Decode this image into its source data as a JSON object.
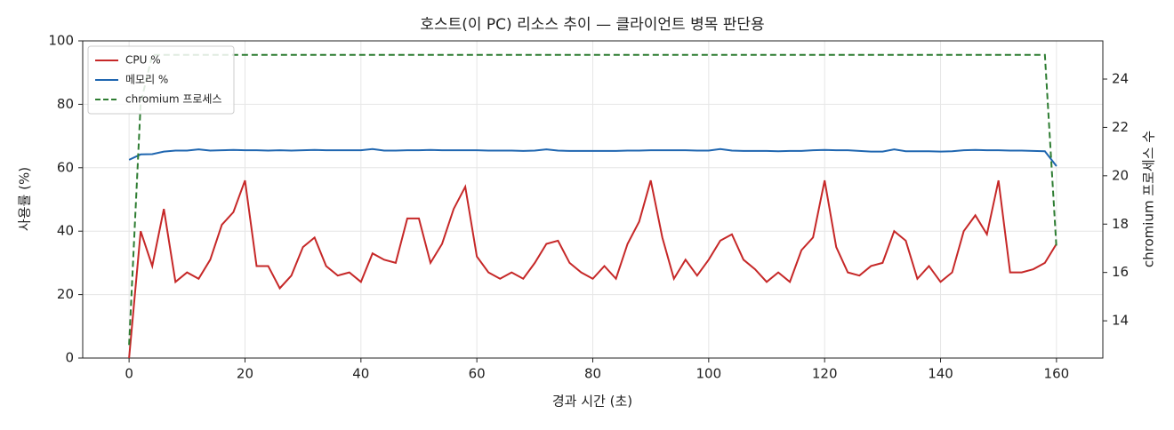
{
  "chart_data": {
    "type": "line",
    "title": "호스트(이 PC) 리소스 추이 — 클라이언트 병목 판단용",
    "xlabel": "경과 시간 (초)",
    "ylabel": "사용률 (%)",
    "y2label": "chromium 프로세스 수",
    "x": [
      0,
      2,
      4,
      6,
      8,
      10,
      12,
      14,
      16,
      18,
      20,
      22,
      24,
      26,
      28,
      30,
      32,
      34,
      36,
      38,
      40,
      42,
      44,
      46,
      48,
      50,
      52,
      54,
      56,
      58,
      60,
      62,
      64,
      66,
      68,
      70,
      72,
      74,
      76,
      78,
      80,
      82,
      84,
      86,
      88,
      90,
      92,
      94,
      96,
      98,
      100,
      102,
      104,
      106,
      108,
      110,
      112,
      114,
      116,
      118,
      120,
      122,
      124,
      126,
      128,
      130,
      132,
      134,
      136,
      138,
      140,
      142,
      144,
      146,
      148,
      150,
      152,
      154,
      156,
      158,
      160
    ],
    "series": [
      {
        "name": "CPU %",
        "color": "#c62828",
        "linestyle": "solid",
        "axis": "y",
        "values": [
          0,
          40,
          29,
          47,
          24,
          27,
          25,
          31,
          42,
          46,
          56,
          29,
          29,
          22,
          26,
          35,
          38,
          29,
          26,
          27,
          24,
          33,
          31,
          30,
          44,
          44,
          30,
          36,
          47,
          54,
          32,
          27,
          25,
          27,
          25,
          30,
          36,
          37,
          30,
          27,
          25,
          29,
          25,
          36,
          43,
          56,
          38,
          25,
          31,
          26,
          31,
          37,
          39,
          31,
          28,
          24,
          27,
          24,
          34,
          38,
          56,
          35,
          27,
          26,
          29,
          30,
          40,
          37,
          25,
          29,
          24,
          27,
          40,
          45,
          39,
          56,
          27,
          27,
          28,
          30,
          36
        ]
      },
      {
        "name": "메모리 %",
        "color": "#1f66b0",
        "linestyle": "solid",
        "axis": "y",
        "values": [
          62.5,
          64.2,
          64.3,
          65.1,
          65.4,
          65.4,
          65.8,
          65.4,
          65.5,
          65.6,
          65.5,
          65.5,
          65.4,
          65.5,
          65.4,
          65.5,
          65.6,
          65.5,
          65.5,
          65.5,
          65.5,
          65.9,
          65.4,
          65.4,
          65.5,
          65.5,
          65.6,
          65.5,
          65.5,
          65.5,
          65.5,
          65.4,
          65.4,
          65.4,
          65.3,
          65.4,
          65.8,
          65.4,
          65.3,
          65.3,
          65.3,
          65.3,
          65.3,
          65.4,
          65.4,
          65.5,
          65.5,
          65.5,
          65.5,
          65.4,
          65.4,
          65.9,
          65.4,
          65.3,
          65.3,
          65.3,
          65.2,
          65.3,
          65.3,
          65.5,
          65.6,
          65.5,
          65.5,
          65.3,
          65.1,
          65.1,
          65.8,
          65.2,
          65.2,
          65.2,
          65.1,
          65.2,
          65.5,
          65.6,
          65.5,
          65.5,
          65.4,
          65.4,
          65.3,
          65.2,
          60.5
        ]
      },
      {
        "name": "chromium 프로세스",
        "color": "#2e7d32",
        "linestyle": "dashed",
        "axis": "y2",
        "values": [
          13,
          23,
          25,
          25,
          25,
          25,
          25,
          25,
          25,
          25,
          25,
          25,
          25,
          25,
          25,
          25,
          25,
          25,
          25,
          25,
          25,
          25,
          25,
          25,
          25,
          25,
          25,
          25,
          25,
          25,
          25,
          25,
          25,
          25,
          25,
          25,
          25,
          25,
          25,
          25,
          25,
          25,
          25,
          25,
          25,
          25,
          25,
          25,
          25,
          25,
          25,
          25,
          25,
          25,
          25,
          25,
          25,
          25,
          25,
          25,
          25,
          25,
          25,
          25,
          25,
          25,
          25,
          25,
          25,
          25,
          25,
          25,
          25,
          25,
          25,
          25,
          25,
          25,
          25,
          25,
          17
        ]
      }
    ],
    "xlim": [
      -8,
      168
    ],
    "xticks": [
      0,
      20,
      40,
      60,
      80,
      100,
      120,
      140,
      160
    ],
    "ylim": [
      0,
      100
    ],
    "yticks": [
      0,
      20,
      40,
      60,
      80,
      100
    ],
    "y2lim": [
      12.46,
      25.58
    ],
    "y2ticks": [
      14,
      16,
      18,
      20,
      22,
      24
    ],
    "grid": true,
    "legend": "upper-left"
  }
}
